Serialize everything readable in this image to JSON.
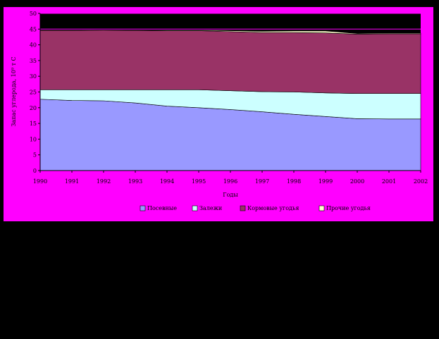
{
  "colors": {
    "page_background": "#000000",
    "chart_background": "#ff00ff",
    "plot_background": "#000000"
  },
  "chart_data": {
    "type": "area",
    "stacked": true,
    "title": "",
    "xlabel": "Годы",
    "ylabel": "Запас углерода, 10⁹ т С",
    "x": [
      "1990",
      "1991",
      "1992",
      "1993",
      "1994",
      "1995",
      "1996",
      "1997",
      "1998",
      "1999",
      "2000",
      "2001",
      "2002"
    ],
    "ylim": [
      0,
      50
    ],
    "yticks": [
      0,
      5,
      10,
      15,
      20,
      25,
      30,
      35,
      40,
      45,
      50
    ],
    "grid": {
      "horizontal_lines": [
        45,
        50
      ]
    },
    "legend_position": "bottom",
    "series": [
      {
        "name": "Посевные",
        "color": "#9999ff",
        "values": [
          22.7,
          22.3,
          22.2,
          21.5,
          20.5,
          20.0,
          19.4,
          18.7,
          17.9,
          17.2,
          16.5,
          16.4,
          16.4
        ]
      },
      {
        "name": "Залежи",
        "color": "#ccffff",
        "values": [
          3.0,
          3.4,
          3.5,
          4.2,
          5.2,
          5.7,
          6.0,
          6.4,
          7.1,
          7.5,
          8.0,
          8.1,
          8.1
        ]
      },
      {
        "name": "Кормовые угодья",
        "color": "#993366",
        "values": [
          18.9,
          18.9,
          19.0,
          18.9,
          18.8,
          18.8,
          18.8,
          18.8,
          18.9,
          19.1,
          18.9,
          19.0,
          19.0
        ]
      },
      {
        "name": "Прочие угодья",
        "color": "#ffffcc",
        "values": [
          0.1,
          0.1,
          0.1,
          0.1,
          0.2,
          0.2,
          0.3,
          0.4,
          0.5,
          0.6,
          0.2,
          0.2,
          0.2
        ]
      }
    ]
  }
}
